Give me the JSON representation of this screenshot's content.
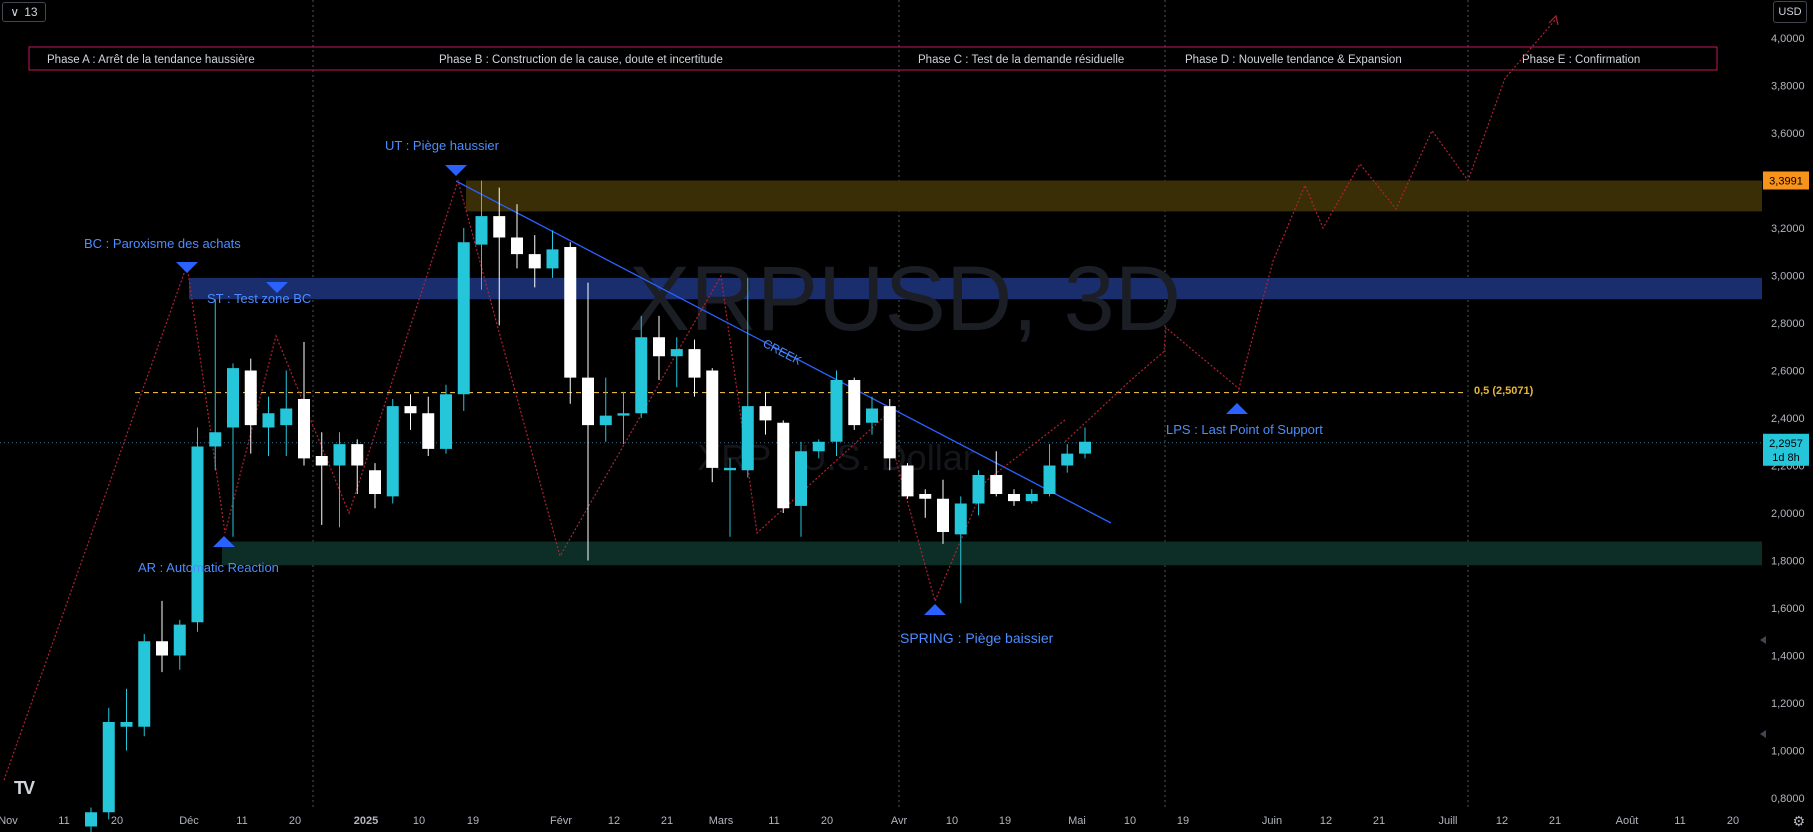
{
  "toolbar": {
    "interval": "13",
    "currency": "USD",
    "interval_icon": "chevron-down-icon",
    "settings_icon": "gear-icon",
    "logo": "TV"
  },
  "watermark": {
    "symbol": "XRPUSD, 3D",
    "description": "XRP / U.S. Dollar"
  },
  "colors": {
    "up": "#26c6da",
    "down": "#ffffff",
    "accent_blue": "#2962ff",
    "label_blue": "#4c8dff",
    "zigzag": "#b22234",
    "resistance_zone": "#3a2e06",
    "bc_zone": "#1a2e6e",
    "support_zone": "#0c2e26",
    "phase_border": "#c2185b",
    "fib": "#e5b73b",
    "price_tag": "#26c6da",
    "resistance_tag": "#f7931a"
  },
  "phases": [
    "Phase A : Arrêt de la tendance haussière",
    "Phase B : Construction de la cause, doute et incertitude",
    "Phase C : Test de la demande résiduelle",
    "Phase D : Nouvelle tendance & Expansion",
    "Phase E : Confirmation"
  ],
  "annotations": {
    "bc": "BC : Paroxisme des achats",
    "st": "ST : Test zone BC",
    "ar": "AR : Automatic Reaction",
    "ut": "UT : Piège haussier",
    "creek": "CREEK",
    "spring": "SPRING : Piège baissier",
    "lps": "LPS : Last Point of Support",
    "fib": "0,5 (2,5071)"
  },
  "price_tags": {
    "resistance": "3,3991",
    "current": "2,2957",
    "countdown": "1d 8h"
  },
  "chart_data": {
    "type": "candlestick",
    "y_axis": {
      "labels": [
        "4,0000",
        "3,8000",
        "3,6000",
        "3,4000",
        "3,2000",
        "3,0000",
        "2,8000",
        "2,6000",
        "2,4000",
        "2,2000",
        "2,0000",
        "1,8000",
        "1,6000",
        "1,4000",
        "1,2000",
        "1,0000",
        "0,8000"
      ],
      "ylim": [
        0.72,
        4.1
      ]
    },
    "x_axis": {
      "labels": [
        "Nov",
        "11",
        "20",
        "Déc",
        "11",
        "20",
        "2025",
        "10",
        "19",
        "Févr",
        "12",
        "21",
        "Mars",
        "11",
        "20",
        "Avr",
        "10",
        "19",
        "Mai",
        "10",
        "19",
        "Juin",
        "12",
        "21",
        "Juill",
        "12",
        "21",
        "Août",
        "11",
        "20"
      ],
      "bold": [
        "2025"
      ]
    },
    "candles": [
      {
        "o": 0.68,
        "h": 0.76,
        "l": 0.6,
        "c": 0.74
      },
      {
        "o": 0.74,
        "h": 1.18,
        "l": 0.71,
        "c": 1.12
      },
      {
        "o": 1.1,
        "h": 1.26,
        "l": 1.0,
        "c": 1.12
      },
      {
        "o": 1.1,
        "h": 1.49,
        "l": 1.06,
        "c": 1.46
      },
      {
        "o": 1.46,
        "h": 1.63,
        "l": 1.33,
        "c": 1.4
      },
      {
        "o": 1.4,
        "h": 1.55,
        "l": 1.34,
        "c": 1.53
      },
      {
        "o": 1.54,
        "h": 2.36,
        "l": 1.5,
        "c": 2.28
      },
      {
        "o": 2.28,
        "h": 2.9,
        "l": 2.18,
        "c": 2.34
      },
      {
        "o": 2.36,
        "h": 2.63,
        "l": 1.9,
        "c": 2.61
      },
      {
        "o": 2.6,
        "h": 2.65,
        "l": 2.25,
        "c": 2.37
      },
      {
        "o": 2.36,
        "h": 2.49,
        "l": 2.24,
        "c": 2.42
      },
      {
        "o": 2.37,
        "h": 2.6,
        "l": 2.24,
        "c": 2.44
      },
      {
        "o": 2.48,
        "h": 2.72,
        "l": 2.2,
        "c": 2.23
      },
      {
        "o": 2.24,
        "h": 2.34,
        "l": 1.95,
        "c": 2.2
      },
      {
        "o": 2.2,
        "h": 2.34,
        "l": 1.94,
        "c": 2.29
      },
      {
        "o": 2.29,
        "h": 2.31,
        "l": 2.08,
        "c": 2.2
      },
      {
        "o": 2.18,
        "h": 2.21,
        "l": 2.02,
        "c": 2.08
      },
      {
        "o": 2.07,
        "h": 2.48,
        "l": 2.04,
        "c": 2.45
      },
      {
        "o": 2.45,
        "h": 2.5,
        "l": 2.35,
        "c": 2.42
      },
      {
        "o": 2.42,
        "h": 2.49,
        "l": 2.24,
        "c": 2.27
      },
      {
        "o": 2.27,
        "h": 2.54,
        "l": 2.25,
        "c": 2.5
      },
      {
        "o": 2.5,
        "h": 3.2,
        "l": 2.43,
        "c": 3.14
      },
      {
        "o": 3.13,
        "h": 3.4,
        "l": 2.94,
        "c": 3.25
      },
      {
        "o": 3.25,
        "h": 3.37,
        "l": 2.79,
        "c": 3.16
      },
      {
        "o": 3.16,
        "h": 3.3,
        "l": 3.03,
        "c": 3.09
      },
      {
        "o": 3.09,
        "h": 3.17,
        "l": 2.95,
        "c": 3.03
      },
      {
        "o": 3.03,
        "h": 3.19,
        "l": 2.99,
        "c": 3.11
      },
      {
        "o": 3.12,
        "h": 3.14,
        "l": 2.46,
        "c": 2.57
      },
      {
        "o": 2.57,
        "h": 2.97,
        "l": 1.8,
        "c": 2.37
      },
      {
        "o": 2.37,
        "h": 2.57,
        "l": 2.3,
        "c": 2.41
      },
      {
        "o": 2.41,
        "h": 2.51,
        "l": 2.29,
        "c": 2.42
      },
      {
        "o": 2.42,
        "h": 2.83,
        "l": 2.4,
        "c": 2.74
      },
      {
        "o": 2.74,
        "h": 2.83,
        "l": 2.56,
        "c": 2.66
      },
      {
        "o": 2.66,
        "h": 2.74,
        "l": 2.53,
        "c": 2.69
      },
      {
        "o": 2.69,
        "h": 2.73,
        "l": 2.49,
        "c": 2.57
      },
      {
        "o": 2.6,
        "h": 2.61,
        "l": 2.13,
        "c": 2.19
      },
      {
        "o": 2.18,
        "h": 2.23,
        "l": 1.9,
        "c": 2.19
      },
      {
        "o": 2.18,
        "h": 2.99,
        "l": 2.15,
        "c": 2.45
      },
      {
        "o": 2.45,
        "h": 2.51,
        "l": 2.33,
        "c": 2.39
      },
      {
        "o": 2.38,
        "h": 2.39,
        "l": 2.0,
        "c": 2.02
      },
      {
        "o": 2.03,
        "h": 2.3,
        "l": 1.9,
        "c": 2.26
      },
      {
        "o": 2.26,
        "h": 2.31,
        "l": 2.23,
        "c": 2.3
      },
      {
        "o": 2.3,
        "h": 2.6,
        "l": 2.24,
        "c": 2.56
      },
      {
        "o": 2.56,
        "h": 2.57,
        "l": 2.35,
        "c": 2.37
      },
      {
        "o": 2.38,
        "h": 2.49,
        "l": 2.33,
        "c": 2.44
      },
      {
        "o": 2.45,
        "h": 2.48,
        "l": 2.18,
        "c": 2.23
      },
      {
        "o": 2.2,
        "h": 2.21,
        "l": 2.06,
        "c": 2.07
      },
      {
        "o": 2.08,
        "h": 2.1,
        "l": 1.98,
        "c": 2.06
      },
      {
        "o": 2.06,
        "h": 2.14,
        "l": 1.87,
        "c": 1.92
      },
      {
        "o": 1.91,
        "h": 2.07,
        "l": 1.62,
        "c": 2.04
      },
      {
        "o": 2.04,
        "h": 2.18,
        "l": 1.99,
        "c": 2.16
      },
      {
        "o": 2.16,
        "h": 2.26,
        "l": 2.07,
        "c": 2.08
      },
      {
        "o": 2.08,
        "h": 2.1,
        "l": 2.03,
        "c": 2.05
      },
      {
        "o": 2.05,
        "h": 2.1,
        "l": 2.04,
        "c": 2.08
      },
      {
        "o": 2.08,
        "h": 2.29,
        "l": 2.07,
        "c": 2.2
      },
      {
        "o": 2.2,
        "h": 2.29,
        "l": 2.17,
        "c": 2.25
      },
      {
        "o": 2.25,
        "h": 2.36,
        "l": 2.23,
        "c": 2.3
      }
    ],
    "projection": [
      [
        2.3,
        2.43,
        2.56,
        2.68,
        2.78,
        2.65,
        2.52,
        2.51,
        3.06,
        3.38,
        3.2,
        3.47,
        3.28,
        3.61,
        3.4,
        3.83,
        4.08
      ]
    ],
    "levels": {
      "resistance_zone": [
        3.27,
        3.4
      ],
      "bc_zone": [
        2.9,
        2.99
      ],
      "support_zone": [
        1.78,
        1.88
      ],
      "fib_level": 2.5071,
      "current": 2.2957
    }
  }
}
